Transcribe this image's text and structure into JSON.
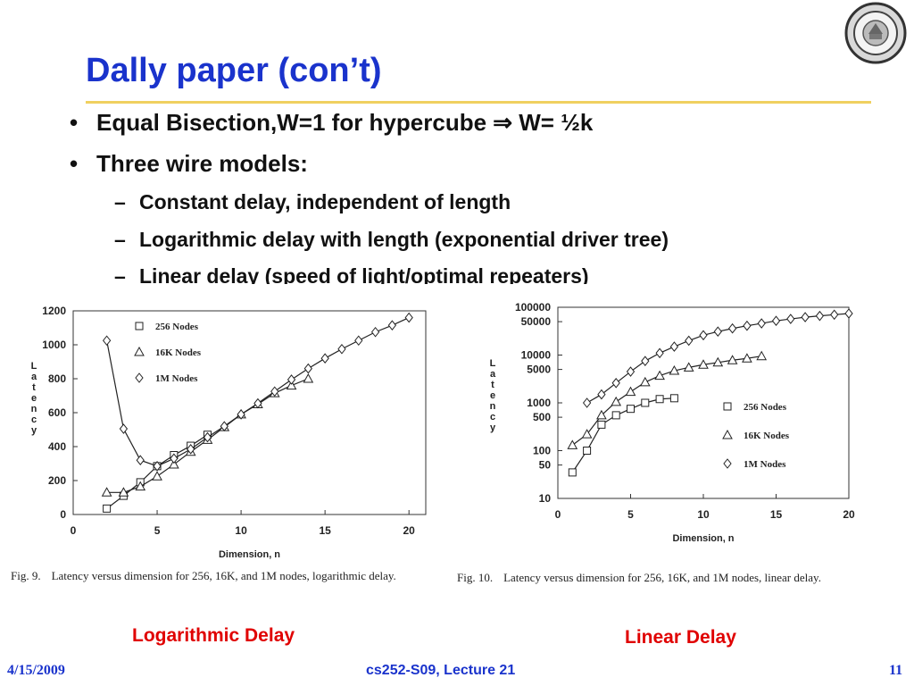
{
  "slide": {
    "title": "Dally paper (con’t)",
    "bullets": [
      {
        "text": "Equal Bisection,W=1 for hypercube ⇒ W= ½k"
      },
      {
        "text": "Three wire models:"
      }
    ],
    "sub_bullets": [
      {
        "text": "Constant delay, independent of length"
      },
      {
        "text": "Logarithmic delay with length (exponential driver tree)"
      },
      {
        "text": "Linear delay (speed of light/optimal repeaters)"
      }
    ],
    "bullet_glyph": "•",
    "dash_glyph": "–",
    "left_caption_label": "Logarithmic Delay",
    "right_caption_label": "Linear Delay",
    "footer": {
      "date": "4/15/2009",
      "course": "cs252-S09, Lecture 21",
      "page": "11"
    },
    "accent_color": "#1a33cc",
    "rule_color": "#f0d060",
    "label_color": "#e00000",
    "logo_icon": "university-seal-icon"
  },
  "chart_data": [
    {
      "type": "line",
      "figure_label": "Fig. 9.",
      "caption": "Latency versus dimension for 256, 16K, and 1M nodes, logarithmic delay.",
      "xlabel": "Dimension, n",
      "ylabel": "Latency",
      "xlim": [
        0,
        21
      ],
      "ylim": [
        0,
        1200
      ],
      "yscale": "linear",
      "xticks": [
        0,
        5,
        10,
        15,
        20
      ],
      "yticks": [
        0,
        200,
        400,
        600,
        800,
        1000,
        1200
      ],
      "legend_position": "top-left",
      "series": [
        {
          "name": "256 Nodes",
          "marker": "square",
          "x": [
            2,
            3,
            4,
            5,
            6,
            7,
            8
          ],
          "y": [
            35,
            110,
            190,
            285,
            350,
            405,
            470
          ]
        },
        {
          "name": "16K Nodes",
          "marker": "triangle",
          "x": [
            2,
            3,
            4,
            5,
            6,
            7,
            8,
            9,
            10,
            11,
            12,
            13,
            14
          ],
          "y": [
            130,
            130,
            165,
            225,
            295,
            370,
            440,
            515,
            590,
            650,
            715,
            760,
            800
          ]
        },
        {
          "name": "1M Nodes",
          "marker": "diamond",
          "x": [
            2,
            3,
            4,
            5,
            6,
            7,
            8,
            9,
            10,
            11,
            12,
            13,
            14,
            15,
            16,
            17,
            18,
            19,
            20
          ],
          "y": [
            1025,
            505,
            320,
            285,
            330,
            385,
            455,
            520,
            590,
            655,
            725,
            795,
            860,
            920,
            975,
            1025,
            1075,
            1115,
            1160
          ]
        }
      ]
    },
    {
      "type": "line",
      "figure_label": "Fig. 10.",
      "caption": "Latency versus dimension for 256, 16K, and 1M nodes, linear delay.",
      "xlabel": "Dimension, n",
      "ylabel": "Latency",
      "xlim": [
        0,
        20
      ],
      "ylim": [
        10,
        100000
      ],
      "yscale": "log",
      "xticks": [
        0,
        5,
        10,
        15,
        20
      ],
      "yticks": [
        10,
        50,
        100,
        500,
        1000,
        5000,
        10000,
        50000,
        100000
      ],
      "legend_position": "bottom-right",
      "series": [
        {
          "name": "256 Nodes",
          "marker": "square",
          "x": [
            1,
            2,
            3,
            4,
            5,
            6,
            7,
            8
          ],
          "y": [
            35,
            100,
            350,
            550,
            750,
            1000,
            1200,
            1250
          ]
        },
        {
          "name": "16K Nodes",
          "marker": "triangle",
          "x": [
            1,
            2,
            3,
            4,
            5,
            6,
            7,
            8,
            9,
            10,
            11,
            12,
            13,
            14
          ],
          "y": [
            130,
            220,
            550,
            1050,
            1700,
            2700,
            3700,
            4700,
            5500,
            6300,
            7000,
            7800,
            8500,
            9500
          ]
        },
        {
          "name": "1M Nodes",
          "marker": "diamond",
          "x": [
            2,
            3,
            4,
            5,
            6,
            7,
            8,
            9,
            10,
            11,
            12,
            13,
            14,
            15,
            16,
            17,
            18,
            19,
            20
          ],
          "y": [
            1000,
            1500,
            2600,
            4500,
            7500,
            11000,
            15000,
            20000,
            26000,
            31000,
            36000,
            41000,
            46000,
            52000,
            57000,
            62000,
            66000,
            70000,
            74000
          ]
        }
      ]
    }
  ]
}
